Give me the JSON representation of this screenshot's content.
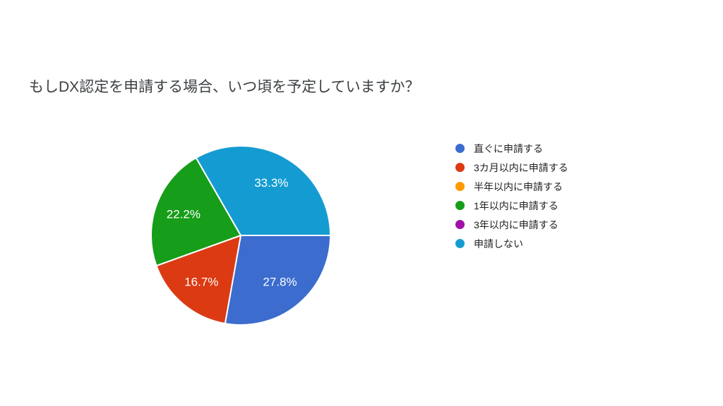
{
  "chart_data": {
    "type": "pie",
    "title": "もしDX認定を申請する場合、いつ頃を予定していますか？",
    "legend_position": "right",
    "start_angle_deg": 0,
    "direction": "clockwise",
    "slice_label_color": "#ffffff",
    "slice_border_color": "#ffffff",
    "slices": [
      {
        "label": "直ぐに申請する",
        "value": 27.8,
        "display_label": "27.8%",
        "color": "#3b6cce"
      },
      {
        "label": "3カ月以内に申請する",
        "value": 16.7,
        "display_label": "16.7%",
        "color": "#db3a13"
      },
      {
        "label": "半年以内に申請する",
        "value": 0,
        "display_label": "",
        "color": "#ff9900"
      },
      {
        "label": "1年以内に申請する",
        "value": 22.2,
        "display_label": "22.2%",
        "color": "#169d19"
      },
      {
        "label": "3年以内に申請する",
        "value": 0,
        "display_label": "",
        "color": "#a111a8"
      },
      {
        "label": "申請しない",
        "value": 33.3,
        "display_label": "33.3%",
        "color": "#149cd2"
      }
    ]
  }
}
